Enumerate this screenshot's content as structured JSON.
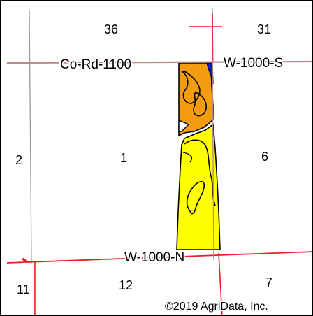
{
  "map": {
    "sections": {
      "s36": "36",
      "s31": "31",
      "s2": "2",
      "s1": "1",
      "s6": "6",
      "s11": "11",
      "s12": "12",
      "s7": "7"
    },
    "roads": {
      "co_rd_1100": "Co-Rd-1100",
      "w_1000_s": "W-1000-S",
      "w_1000_n": "W-1000-N"
    },
    "copyright": "©2019 AgriData, Inc.",
    "colors": {
      "soil_orange": "#F39C12",
      "soil_yellow": "#FFFF00",
      "soil_blue": "#0A1ACF",
      "road_red": "#E32020",
      "road_pink": "#B88A8A",
      "section_gray": "#9A9A9A"
    }
  }
}
